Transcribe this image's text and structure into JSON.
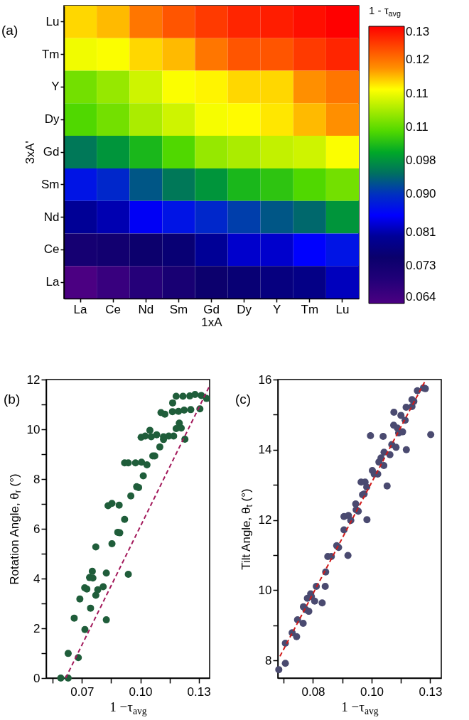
{
  "chart_data": [
    {
      "type": "heatmap",
      "xlabel": "1xA",
      "ylabel": "3xA'",
      "clabel": "1 - τ$_{avg}$",
      "annotations": [
        "(a)"
      ],
      "categories": [
        "La",
        "Ce",
        "Nd",
        "Sm",
        "Gd",
        "Dy",
        "Y",
        "Tm",
        "Lu"
      ],
      "y_categories": [
        "Lu",
        "Tm",
        "Y",
        "Dy",
        "Gd",
        "Sm",
        "Nd",
        "Ce",
        "La"
      ],
      "cells": [
        [
          0.1168,
          0.1181,
          0.1218,
          0.1241,
          0.126,
          0.1274,
          0.128,
          0.129,
          0.13
        ],
        [
          0.1142,
          0.1148,
          0.1168,
          0.1181,
          0.1218,
          0.1241,
          0.1241,
          0.126,
          0.1274
        ],
        [
          0.107,
          0.109,
          0.1122,
          0.1148,
          0.1155,
          0.1168,
          0.1168,
          0.1201,
          0.1218
        ],
        [
          0.105,
          0.107,
          0.1102,
          0.1122,
          0.1145,
          0.1152,
          0.1161,
          0.1181,
          0.1201
        ],
        [
          0.0957,
          0.0983,
          0.1016,
          0.105,
          0.109,
          0.1102,
          0.1115,
          0.1122,
          0.1148
        ],
        [
          0.0871,
          0.0891,
          0.093,
          0.0957,
          0.0983,
          0.1016,
          0.1029,
          0.105,
          0.107
        ],
        [
          0.0798,
          0.0812,
          0.0845,
          0.0871,
          0.0891,
          0.0911,
          0.093,
          0.0944,
          0.0983
        ],
        [
          0.0726,
          0.0732,
          0.0746,
          0.0759,
          0.0798,
          0.0825,
          0.0825,
          0.0851,
          0.0871
        ],
        [
          0.064,
          0.0666,
          0.0693,
          0.0719,
          0.0746,
          0.0759,
          0.0772,
          0.0779,
          0.0818
        ]
      ],
      "clim": [
        0.064,
        0.13
      ],
      "cticks": [
        {
          "value": 0.064,
          "label": "0.064"
        },
        {
          "value": 0.073,
          "label": "0.073"
        },
        {
          "value": 0.081,
          "label": "0.081"
        },
        {
          "value": 0.09,
          "label": "0.090"
        },
        {
          "value": 0.098,
          "label": "0.098"
        },
        {
          "value": 0.106,
          "label": "0.11"
        },
        {
          "value": 0.114,
          "label": "0.11"
        },
        {
          "value": 0.122,
          "label": "0.12"
        },
        {
          "value": 0.13,
          "label": "0.13"
        }
      ]
    },
    {
      "type": "scatter",
      "xlabel": "1 −τ$_{avg}$",
      "ylabel": "Rotation Angle, θ$_{r}$ (°)",
      "annotations": [
        "(b)"
      ],
      "xlim": [
        0.0516,
        0.1356
      ],
      "xticks": [
        {
          "value": 0.055,
          "label": null
        },
        {
          "value": 0.07,
          "label": "0.07"
        },
        {
          "value": 0.085,
          "label": null
        },
        {
          "value": 0.1,
          "label": "0.10"
        },
        {
          "value": 0.115,
          "label": null
        },
        {
          "value": 0.13,
          "label": "0.13"
        }
      ],
      "ylim": [
        0,
        12
      ],
      "yticks": [
        0,
        {
          "value": 1,
          "label": null
        },
        2,
        {
          "value": 3,
          "label": null
        },
        4,
        {
          "value": 5,
          "label": null
        },
        6,
        {
          "value": 7,
          "label": null
        },
        8,
        {
          "value": 9,
          "label": null
        },
        10,
        {
          "value": 11,
          "label": null
        },
        12
      ],
      "series": [
        {
          "type": "scatter",
          "color": "#1f5d3a",
          "marker": "circle",
          "x": [
            0.0591,
            0.0629,
            0.0629,
            0.0681,
            0.066,
            0.0715,
            0.0689,
            0.0714,
            0.0725,
            0.0744,
            0.0739,
            0.0753,
            0.0756,
            0.0771,
            0.0781,
            0.0809,
            0.0771,
            0.0825,
            0.0825,
            0.0854,
            0.0834,
            0.0854,
            0.0891,
            0.0884,
            0.0894,
            0.0919,
            0.0938,
            0.0919,
            0.0938,
            0.0975,
            0.1006,
            0.1034,
            0.0951,
            0.0981,
            0.0991,
            0.1015,
            0.1064,
            0.1074,
            0.11,
            0.1004,
            0.1025,
            0.1049,
            0.1056,
            0.1084,
            0.1119,
            0.1119,
            0.1146,
            0.1171,
            0.1184,
            0.12,
            0.121,
            0.1229,
            0.1106,
            0.1126,
            0.1165,
            0.1196,
            0.1225,
            0.1259,
            0.1306,
            0.1166,
            0.1184,
            0.1219,
            0.1254,
            0.1281,
            0.1313,
            0.134
          ],
          "values": [
            0,
            0,
            0.99,
            0.82,
            2.41,
            1.95,
            3.18,
            3.63,
            3.58,
            2.81,
            4.04,
            4.29,
            4.02,
            3.33,
            3.55,
            3.67,
            5.27,
            4.22,
            2.34,
            5.4,
            6.93,
            7.02,
            6.95,
            5.86,
            5.84,
            6.38,
            4.17,
            8.65,
            8.65,
            8.65,
            8.68,
            8.57,
            7.32,
            7.69,
            7.66,
            8.13,
            8.93,
            8.93,
            9.29,
            9.68,
            9.73,
            9.96,
            9.7,
            9.78,
            9.7,
            9.59,
            9.73,
            9.73,
            10.03,
            10.25,
            10.05,
            9.6,
            10.67,
            10.61,
            10.71,
            10.72,
            10.77,
            10.79,
            10.82,
            11.06,
            11.33,
            11.33,
            11.34,
            11.4,
            11.36,
            11.24
          ]
        },
        {
          "type": "line",
          "color": "#a3195b",
          "line_style": "dashed",
          "marker": "none",
          "x": [
            0.0616,
            0.1356
          ],
          "values": [
            0,
            11.75
          ]
        }
      ]
    },
    {
      "type": "scatter",
      "xlabel": "1 −τ$_{avg}$",
      "ylabel": "Tilt Angle, θ$_{t}$ (°)",
      "annotations": [
        "(c)"
      ],
      "xlim": [
        0.065,
        0.1347
      ],
      "xticks": [
        {
          "value": 0.0675,
          "label": null
        },
        {
          "value": 0.08,
          "label": "0.08"
        },
        {
          "value": 0.0925,
          "label": null
        },
        {
          "value": 0.105,
          "label": "0.10"
        },
        {
          "value": 0.1175,
          "label": null
        },
        {
          "value": 0.13,
          "label": "0.13"
        }
      ],
      "ylim": [
        7.5,
        16
      ],
      "yticks": [
        8,
        {
          "value": 9,
          "label": null
        },
        10,
        {
          "value": 11,
          "label": null
        },
        12,
        {
          "value": 13,
          "label": null
        },
        14,
        {
          "value": 15,
          "label": null
        },
        16
      ],
      "series": [
        {
          "type": "scatter",
          "color": "#4a4a70",
          "marker": "circle",
          "x": [
            0.0654,
            0.0682,
            0.0682,
            0.0711,
            0.073,
            0.0734,
            0.0758,
            0.0759,
            0.0769,
            0.0782,
            0.0776,
            0.079,
            0.0793,
            0.0807,
            0.0814,
            0.0839,
            0.0852,
            0.0854,
            0.0863,
            0.0878,
            0.0901,
            0.0909,
            0.0949,
            0.0932,
            0.0932,
            0.0951,
            0.0961,
            0.0982,
            0.0984,
            0.0993,
            0.103,
            0.1005,
            0.1022,
            0.1029,
            0.1011,
            0.1018,
            0.1045,
            0.1053,
            0.1061,
            0.1076,
            0.1081,
            0.109,
            0.1103,
            0.1102,
            0.1116,
            0.1099,
            0.1128,
            0.1136,
            0.1154,
            0.1145,
            0.1144,
            0.116,
            0.1165,
            0.1175,
            0.1182,
            0.1193,
            0.1198,
            0.1197,
            0.1222,
            0.1222,
            0.123,
            0.1245,
            0.1271,
            0.1279,
            0.1302
          ],
          "values": [
            7.74,
            7.92,
            8.49,
            8.79,
            8.68,
            9.16,
            9.06,
            9.53,
            9.45,
            9.4,
            9.77,
            9.9,
            9.82,
            9.69,
            10.11,
            9.64,
            10.11,
            10.52,
            10.96,
            10.96,
            11.27,
            11.22,
            10.99,
            11.72,
            12.1,
            12.13,
            11.99,
            12.46,
            12.29,
            12.25,
            12.01,
            13.08,
            13.08,
            12.94,
            12.72,
            12.74,
            14.4,
            13.41,
            13.31,
            13.31,
            13.65,
            13.77,
            13.93,
            13.55,
            12.97,
            14.38,
            13.86,
            14.15,
            14.07,
            15.07,
            14.7,
            14.62,
            14.48,
            14.98,
            14.51,
            14.84,
            14,
            15.21,
            15.23,
            15.43,
            15.38,
            15.68,
            15.76,
            15.74,
            14.43
          ]
        },
        {
          "type": "line",
          "color": "#d01a1a",
          "line_style": "dashed",
          "marker": "none",
          "x": [
            0.0659,
            0.1279
          ],
          "values": [
            8.12,
            15.97
          ]
        }
      ]
    }
  ]
}
